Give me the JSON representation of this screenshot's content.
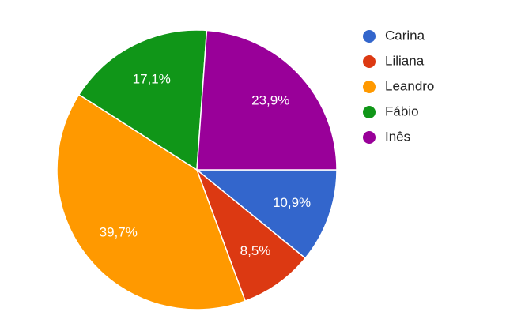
{
  "chart_data": {
    "type": "pie",
    "categories": [
      "Carina",
      "Liliana",
      "Leandro",
      "Fábio",
      "Inês"
    ],
    "values": [
      10.9,
      8.5,
      39.7,
      17.1,
      23.9
    ],
    "value_labels": [
      "10,9%",
      "8,5%",
      "39,7%",
      "17,1%",
      "23,9%"
    ],
    "colors": [
      "#3366cc",
      "#dc3912",
      "#ff9900",
      "#109618",
      "#990099"
    ],
    "legend": "right"
  }
}
